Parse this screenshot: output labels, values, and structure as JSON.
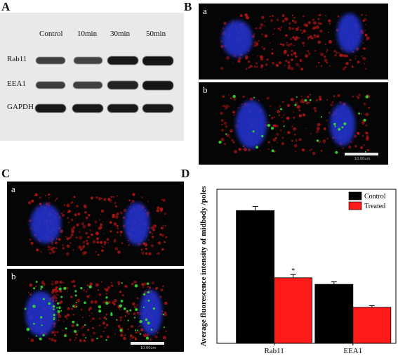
{
  "panels": {
    "a": "A",
    "b": "B",
    "c": "C",
    "d": "D"
  },
  "blot": {
    "lanes": [
      "Control",
      "10min",
      "30min",
      "50min"
    ],
    "rows": [
      {
        "label": "Rab11",
        "intensity": [
          0.55,
          0.5,
          0.95,
          1.0
        ]
      },
      {
        "label": "EEA1",
        "intensity": [
          0.6,
          0.55,
          0.85,
          1.0
        ]
      },
      {
        "label": "GAPDH",
        "intensity": [
          0.95,
          0.95,
          0.95,
          0.95
        ]
      }
    ]
  },
  "micrographs": {
    "b_a": "a",
    "b_b": "b",
    "c_a": "a",
    "c_b": "b",
    "scale_text": "10.00um"
  },
  "colors": {
    "control": "#000000",
    "treated": "#ff1a1a",
    "nucleus": "#2233cc",
    "midbody_red": "#b01515",
    "eea1_green": "#33dd33"
  },
  "chart_data": {
    "type": "bar",
    "categories": [
      "Rab11",
      "EEA1"
    ],
    "series": [
      {
        "name": "Control",
        "values": [
          8.1,
          3.6
        ],
        "errors": [
          0.25,
          0.15
        ]
      },
      {
        "name": "Treated",
        "values": [
          4.0,
          2.2
        ],
        "errors": [
          0.2,
          0.1
        ]
      }
    ],
    "ylabel": "Average fluorescence intensity of midbody /poles",
    "ylim": [
      0,
      9.4
    ],
    "annotations": [
      {
        "category": "Rab11",
        "series": "Treated",
        "text": "*"
      }
    ],
    "legend_position": "top-right",
    "grid": false
  }
}
